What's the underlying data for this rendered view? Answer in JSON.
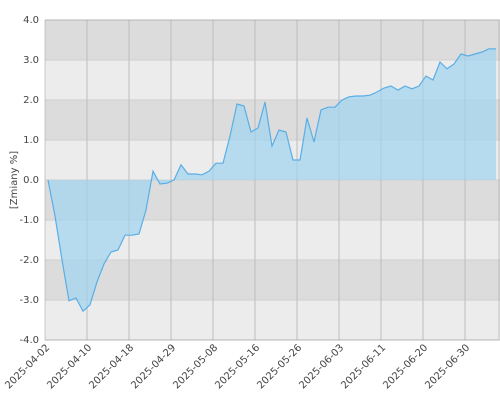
{
  "chart_data": {
    "type": "area",
    "y_label": "[Zmiany %]",
    "categories": [
      "2025-04-02",
      null,
      null,
      null,
      null,
      null,
      "2025-04-10",
      null,
      null,
      null,
      null,
      null,
      "2025-04-18",
      null,
      null,
      null,
      null,
      null,
      "2025-04-29",
      null,
      null,
      null,
      null,
      null,
      "2025-05-08",
      null,
      null,
      null,
      null,
      null,
      "2025-05-16",
      null,
      null,
      null,
      null,
      null,
      "2025-05-26",
      null,
      null,
      null,
      null,
      null,
      "2025-06-03",
      null,
      null,
      null,
      null,
      null,
      "2025-06-11",
      null,
      null,
      null,
      null,
      null,
      "2025-06-20",
      null,
      null,
      null,
      null,
      null,
      "2025-06-30",
      null,
      null,
      null,
      null
    ],
    "values": [
      0,
      -0.9,
      -2.0,
      -3.02,
      -2.95,
      -3.28,
      -3.12,
      -2.55,
      -2.1,
      -1.8,
      -1.75,
      -1.38,
      -1.38,
      -1.35,
      -0.75,
      0.22,
      -0.1,
      -0.08,
      0.0,
      0.38,
      0.15,
      0.15,
      0.13,
      0.22,
      0.42,
      0.42,
      1.1,
      1.9,
      1.85,
      1.2,
      1.3,
      1.95,
      0.85,
      1.25,
      1.2,
      0.5,
      0.5,
      1.55,
      0.95,
      1.75,
      1.82,
      1.82,
      2.0,
      2.08,
      2.1,
      2.1,
      2.12,
      2.2,
      2.3,
      2.35,
      2.25,
      2.35,
      2.28,
      2.35,
      2.6,
      2.5,
      2.95,
      2.78,
      2.9,
      3.15,
      3.1,
      3.15,
      3.2,
      3.28,
      3.28
    ],
    "color": "#5aaee6",
    "ylim": [
      -4,
      4
    ],
    "yticks": [
      {
        "value": -4,
        "label": "-4.0"
      },
      {
        "value": -3,
        "label": "-3.0"
      },
      {
        "value": -2,
        "label": "-2.0"
      },
      {
        "value": -1,
        "label": "-1.0"
      },
      {
        "value": 0,
        "label": "0.0"
      },
      {
        "value": 1,
        "label": "1.0"
      },
      {
        "value": 2,
        "label": "2.0"
      },
      {
        "value": 3,
        "label": "3.0"
      },
      {
        "value": 4,
        "label": "4.0"
      }
    ],
    "grid": true
  }
}
